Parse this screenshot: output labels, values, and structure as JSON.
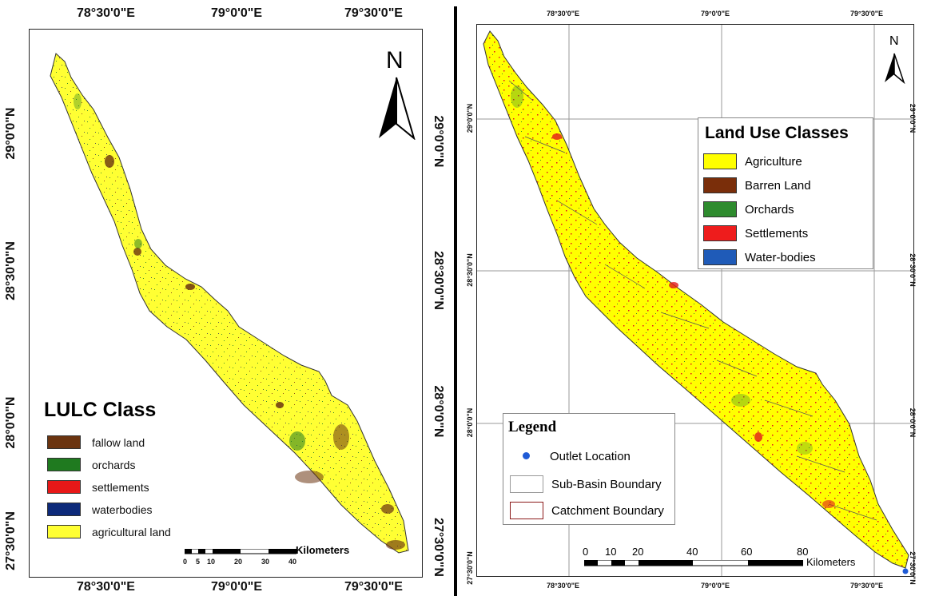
{
  "left_map": {
    "top_labels": [
      "78°30'0\"E",
      "79°0'0\"E",
      "79°30'0\"E"
    ],
    "bottom_labels": [
      "78°30'0\"E",
      "79°0'0\"E",
      "79°30'0\"E"
    ],
    "side_labels": [
      "29°0'0\"N",
      "28°30'0\"N",
      "28°0'0\"N",
      "27°30'0\"N"
    ],
    "north": "N",
    "legend": {
      "title": "LULC Class",
      "items": [
        {
          "label": "fallow land",
          "color": "#6b3410"
        },
        {
          "label": "orchards",
          "color": "#1f7a1f"
        },
        {
          "label": "settlements",
          "color": "#e81818"
        },
        {
          "label": "waterbodies",
          "color": "#0d2a7a"
        },
        {
          "label": "agricultural land",
          "color": "#ffff33"
        }
      ]
    },
    "scale": {
      "ticks": [
        "0",
        "5",
        "10",
        "20",
        "30",
        "40"
      ],
      "unit": "Kilometers"
    }
  },
  "right_map": {
    "top_labels": [
      "78°30'0\"E",
      "79°0'0\"E",
      "79°30'0\"E"
    ],
    "bottom_labels": [
      "78°30'0\"E",
      "79°0'0\"E",
      "79°30'0\"E"
    ],
    "side_labels": [
      "29°0'0\"N",
      "28°30'0\"N",
      "28°0'0\"N",
      "27°30'0\"N"
    ],
    "north": "N",
    "land_use": {
      "title": "Land Use Classes",
      "items": [
        {
          "label": "Agriculture",
          "color": "#ffff00"
        },
        {
          "label": "Barren Land",
          "color": "#7a2e0a"
        },
        {
          "label": "Orchards",
          "color": "#2e8b2e"
        },
        {
          "label": "Settlements",
          "color": "#ee1c1c"
        },
        {
          "label": "Water-bodies",
          "color": "#1f5bb8"
        }
      ]
    },
    "legend": {
      "title": "Legend",
      "items": [
        {
          "label": "Outlet Location",
          "symbol": "dot",
          "color": "#1f5bd6"
        },
        {
          "label": "Sub-Basin Boundary",
          "symbol": "box-gray"
        },
        {
          "label": "Catchment Boundary",
          "symbol": "box-red"
        }
      ]
    },
    "scale": {
      "ticks": [
        "0",
        "10",
        "20",
        "40",
        "60",
        "80"
      ],
      "unit": "Kilometers"
    }
  }
}
